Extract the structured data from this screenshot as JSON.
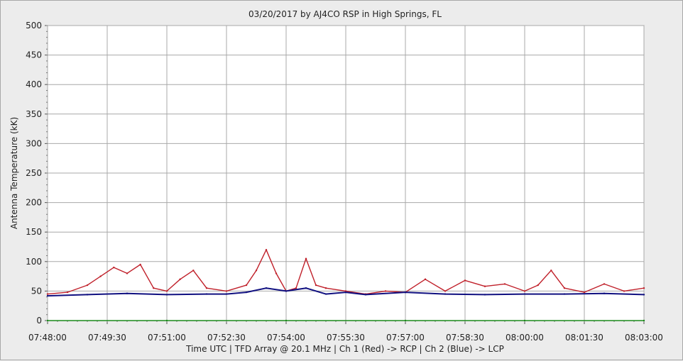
{
  "chart_data": {
    "type": "line",
    "title": "03/20/2017  by  AJ4CO RSP  in  High Springs, FL",
    "xlabel": "Time UTC    |    TFD Array @ 20.1 MHz    |    Ch 1 (Red) -> RCP    |    Ch 2 (Blue)  -> LCP",
    "ylabel": "Antenna Temperature (kK)",
    "ylim": [
      0,
      500
    ],
    "y_ticks": [
      "0",
      "50",
      "100",
      "150",
      "200",
      "250",
      "300",
      "350",
      "400",
      "450",
      "500"
    ],
    "x_tick_labels": [
      "07:48:00",
      "07:49:30",
      "07:51:00",
      "07:52:30",
      "07:54:00",
      "07:55:30",
      "07:57:00",
      "07:58:30",
      "08:00:00",
      "08:01:30",
      "08:03:00"
    ],
    "grid": true,
    "series": [
      {
        "name": "Ch 1 (Red) -> RCP",
        "color": "#c0202a",
        "x": [
          "07:48:00",
          "07:48:30",
          "07:49:00",
          "07:49:20",
          "07:49:40",
          "07:50:00",
          "07:50:20",
          "07:50:40",
          "07:51:00",
          "07:51:20",
          "07:51:40",
          "07:52:00",
          "07:52:30",
          "07:53:00",
          "07:53:15",
          "07:53:30",
          "07:53:45",
          "07:54:00",
          "07:54:15",
          "07:54:30",
          "07:54:45",
          "07:55:00",
          "07:55:30",
          "07:56:00",
          "07:56:30",
          "07:57:00",
          "07:57:30",
          "07:58:00",
          "07:58:30",
          "07:59:00",
          "07:59:30",
          "08:00:00",
          "08:00:20",
          "08:00:40",
          "08:01:00",
          "08:01:30",
          "08:02:00",
          "08:02:30",
          "08:03:00"
        ],
        "values": [
          45,
          48,
          60,
          75,
          90,
          80,
          95,
          55,
          50,
          70,
          85,
          55,
          50,
          60,
          85,
          120,
          80,
          50,
          55,
          105,
          60,
          55,
          50,
          45,
          50,
          48,
          70,
          50,
          68,
          58,
          62,
          50,
          60,
          85,
          55,
          48,
          62,
          50,
          55
        ]
      },
      {
        "name": "Ch 2 (Blue) -> LCP",
        "color": "#101080",
        "x": [
          "07:48:00",
          "07:49:00",
          "07:50:00",
          "07:51:00",
          "07:52:00",
          "07:52:30",
          "07:53:00",
          "07:53:30",
          "07:54:00",
          "07:54:30",
          "07:55:00",
          "07:55:30",
          "07:56:00",
          "07:57:00",
          "07:58:00",
          "07:59:00",
          "08:00:00",
          "08:01:00",
          "08:02:00",
          "08:03:00"
        ],
        "values": [
          42,
          44,
          46,
          44,
          45,
          45,
          48,
          55,
          50,
          55,
          45,
          48,
          44,
          48,
          45,
          44,
          45,
          45,
          46,
          44
        ]
      },
      {
        "name": "",
        "color": "#1a8a1a",
        "x": [
          "07:48:00",
          "07:51:00",
          "07:54:00",
          "07:57:00",
          "08:00:00",
          "08:03:00"
        ],
        "values": [
          0,
          0,
          0,
          0,
          0,
          0
        ]
      }
    ]
  }
}
